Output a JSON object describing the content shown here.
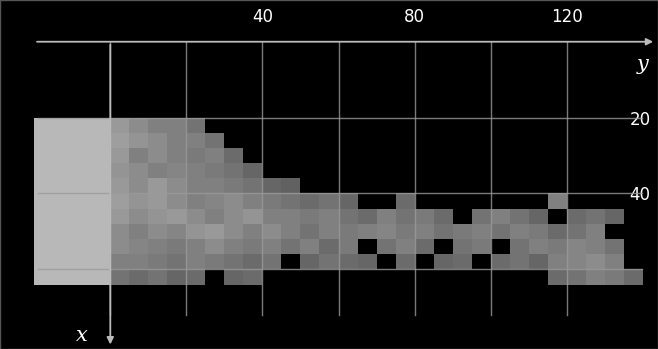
{
  "chart_data": {
    "type": "heatmap",
    "x_label": "y",
    "y_label": "x",
    "xlim": [
      -29,
      144
    ],
    "ylim": [
      81,
      -11
    ],
    "xticks": [
      40,
      80,
      120
    ],
    "yticks": [
      20,
      40
    ],
    "grid": true,
    "x_gridlines": [
      0,
      20,
      40,
      60,
      80,
      100,
      120
    ],
    "y_gridlines": [
      20,
      40,
      60
    ],
    "color_range": [
      0,
      1
    ],
    "col_edges": [
      -20,
      -15,
      -10,
      -5,
      0,
      5,
      10,
      15,
      20,
      25,
      30,
      35,
      40,
      45,
      50,
      55,
      60,
      65,
      70,
      75,
      80,
      85,
      90,
      95,
      100,
      105,
      110,
      115,
      120,
      125,
      130,
      135,
      140
    ],
    "row_edges": [
      20,
      24,
      28,
      32,
      36,
      40,
      44,
      48,
      52,
      56,
      60,
      64
    ],
    "cells": [
      [
        0.72,
        0.72,
        0.72,
        0.72,
        0.6,
        0.55,
        0.5,
        0.5,
        0.45,
        null,
        null,
        null,
        null,
        null,
        null,
        null,
        null,
        null,
        null,
        null,
        null,
        null,
        null,
        null,
        null,
        null,
        null,
        null,
        null,
        null,
        null,
        null
      ],
      [
        0.72,
        0.72,
        0.72,
        0.72,
        0.62,
        0.58,
        0.55,
        0.5,
        0.5,
        0.45,
        null,
        null,
        null,
        null,
        null,
        null,
        null,
        null,
        null,
        null,
        null,
        null,
        null,
        null,
        null,
        null,
        null,
        null,
        null,
        null,
        null,
        null
      ],
      [
        0.72,
        0.72,
        0.72,
        0.72,
        0.6,
        0.5,
        0.55,
        0.5,
        0.48,
        0.5,
        0.42,
        null,
        null,
        null,
        null,
        null,
        null,
        null,
        null,
        null,
        null,
        null,
        null,
        null,
        null,
        null,
        null,
        null,
        null,
        null,
        null,
        null
      ],
      [
        0.72,
        0.72,
        0.72,
        0.72,
        0.58,
        0.55,
        0.5,
        0.52,
        0.5,
        0.48,
        0.45,
        0.4,
        null,
        null,
        null,
        null,
        null,
        null,
        null,
        null,
        null,
        null,
        null,
        null,
        null,
        null,
        null,
        null,
        null,
        null,
        null,
        null
      ],
      [
        0.72,
        0.72,
        0.72,
        0.72,
        0.6,
        0.55,
        0.6,
        0.55,
        0.5,
        0.5,
        0.48,
        0.45,
        0.4,
        0.38,
        null,
        null,
        null,
        null,
        null,
        null,
        null,
        null,
        null,
        null,
        null,
        null,
        null,
        null,
        null,
        null,
        null,
        null
      ],
      [
        0.72,
        0.72,
        0.72,
        0.72,
        0.62,
        0.58,
        0.6,
        0.55,
        0.5,
        0.52,
        0.55,
        0.5,
        0.48,
        0.45,
        0.42,
        0.45,
        0.4,
        null,
        null,
        0.42,
        null,
        null,
        null,
        null,
        null,
        null,
        null,
        0.5,
        null,
        null,
        null,
        null
      ],
      [
        0.72,
        0.72,
        0.72,
        0.72,
        0.6,
        0.55,
        0.58,
        0.6,
        0.55,
        0.5,
        0.55,
        0.58,
        0.5,
        0.5,
        0.48,
        0.5,
        0.45,
        0.42,
        0.5,
        0.45,
        0.48,
        0.42,
        null,
        0.45,
        0.5,
        0.45,
        0.4,
        null,
        0.42,
        0.45,
        0.4,
        null
      ],
      [
        0.72,
        0.72,
        0.72,
        0.72,
        0.55,
        0.5,
        0.55,
        0.52,
        0.58,
        0.6,
        0.55,
        0.5,
        0.55,
        0.5,
        0.45,
        0.5,
        0.48,
        0.5,
        0.52,
        0.48,
        0.5,
        0.45,
        0.48,
        0.5,
        0.45,
        0.5,
        0.48,
        0.42,
        0.45,
        0.5,
        null,
        null
      ],
      [
        0.72,
        0.72,
        0.72,
        0.72,
        0.55,
        0.52,
        0.5,
        0.48,
        0.5,
        0.55,
        0.5,
        0.48,
        0.5,
        0.45,
        0.5,
        0.42,
        0.48,
        null,
        0.45,
        0.5,
        0.42,
        null,
        0.45,
        0.48,
        null,
        0.45,
        0.5,
        0.48,
        0.52,
        0.5,
        0.45,
        null
      ],
      [
        0.72,
        0.72,
        0.72,
        0.72,
        0.5,
        0.5,
        0.48,
        0.45,
        0.5,
        0.48,
        0.45,
        0.42,
        0.45,
        null,
        0.4,
        0.45,
        0.42,
        0.4,
        null,
        0.42,
        null,
        0.4,
        0.42,
        null,
        0.42,
        0.45,
        0.4,
        0.5,
        0.52,
        0.55,
        0.5,
        null
      ],
      [
        0.72,
        0.72,
        0.72,
        0.72,
        0.45,
        0.42,
        0.45,
        0.4,
        0.42,
        null,
        0.4,
        0.42,
        null,
        null,
        null,
        null,
        null,
        null,
        null,
        null,
        null,
        null,
        null,
        null,
        null,
        null,
        null,
        0.42,
        0.45,
        0.5,
        0.48,
        0.42
      ]
    ]
  }
}
